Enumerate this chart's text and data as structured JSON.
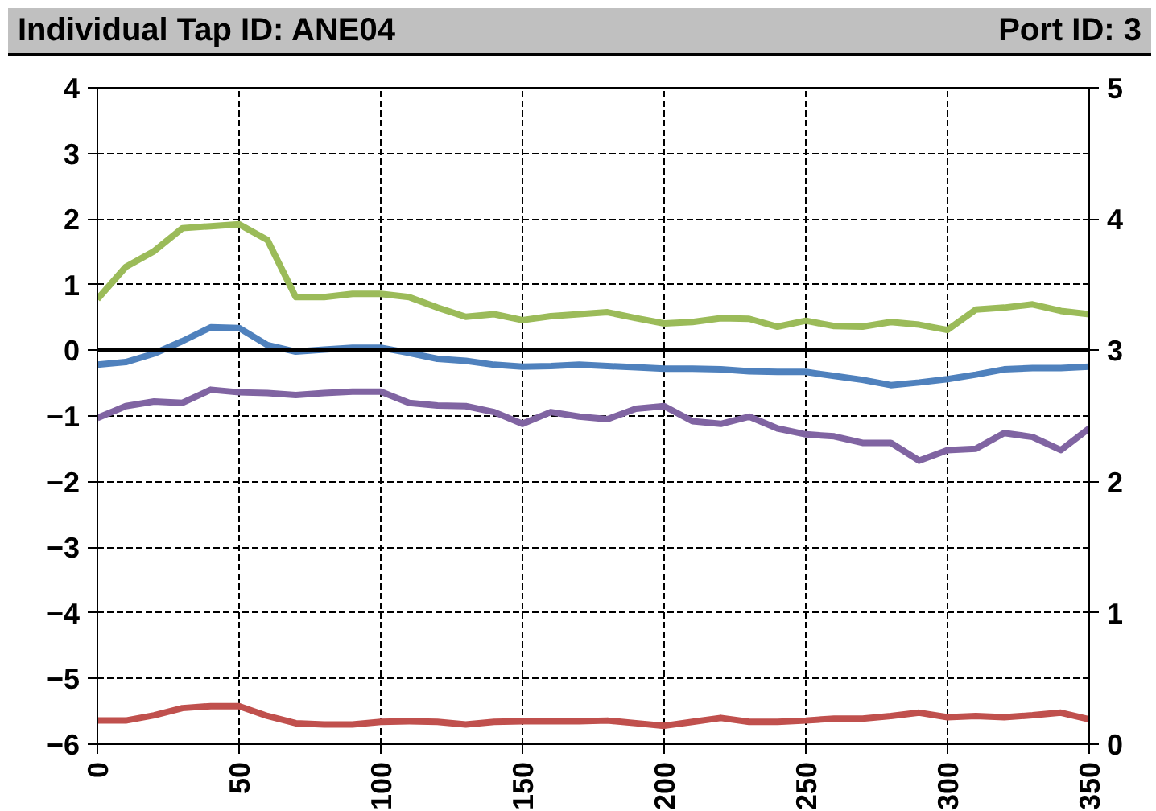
{
  "chart_data": {
    "type": "line",
    "title": "Individual Tap ID: ANE04",
    "annotations": [
      "Port ID: 3"
    ],
    "x": [
      0,
      10,
      20,
      30,
      40,
      50,
      60,
      70,
      80,
      90,
      100,
      110,
      120,
      130,
      140,
      150,
      160,
      170,
      180,
      190,
      200,
      210,
      220,
      230,
      240,
      250,
      260,
      270,
      280,
      290,
      300,
      310,
      320,
      330,
      340,
      350
    ],
    "series": [
      {
        "color": "#9bbb59",
        "values": [
          0.78,
          1.27,
          1.51,
          1.86,
          1.89,
          1.92,
          1.68,
          0.81,
          0.81,
          0.86,
          0.86,
          0.81,
          0.65,
          0.51,
          0.55,
          0.46,
          0.52,
          0.55,
          0.58,
          0.49,
          0.41,
          0.43,
          0.49,
          0.48,
          0.36,
          0.45,
          0.37,
          0.36,
          0.43,
          0.39,
          0.31,
          0.62,
          0.65,
          0.7,
          0.6,
          0.55
        ]
      },
      {
        "color": "#4f81bd",
        "values": [
          -0.22,
          -0.18,
          -0.05,
          0.14,
          0.35,
          0.34,
          0.08,
          -0.02,
          0.01,
          0.04,
          0.04,
          -0.04,
          -0.13,
          -0.16,
          -0.22,
          -0.25,
          -0.24,
          -0.22,
          -0.24,
          -0.26,
          -0.28,
          -0.28,
          -0.29,
          -0.32,
          -0.33,
          -0.33,
          -0.39,
          -0.45,
          -0.53,
          -0.49,
          -0.44,
          -0.37,
          -0.29,
          -0.27,
          -0.27,
          -0.25
        ]
      },
      {
        "color": "#8064a2",
        "values": [
          -1.03,
          -0.85,
          -0.78,
          -0.8,
          -0.6,
          -0.64,
          -0.65,
          -0.68,
          -0.65,
          -0.63,
          -0.63,
          -0.8,
          -0.84,
          -0.85,
          -0.94,
          -1.12,
          -0.94,
          -1.01,
          -1.05,
          -0.89,
          -0.85,
          -1.08,
          -1.12,
          -1.01,
          -1.19,
          -1.28,
          -1.31,
          -1.41,
          -1.41,
          -1.68,
          -1.52,
          -1.5,
          -1.26,
          -1.32,
          -1.52,
          -1.19
        ]
      },
      {
        "color": "#c0504d",
        "values": [
          -5.64,
          -5.64,
          -5.56,
          -5.45,
          -5.42,
          -5.42,
          -5.57,
          -5.68,
          -5.7,
          -5.7,
          -5.66,
          -5.65,
          -5.66,
          -5.7,
          -5.66,
          -5.65,
          -5.65,
          -5.65,
          -5.64,
          -5.68,
          -5.72,
          -5.66,
          -5.6,
          -5.66,
          -5.66,
          -5.64,
          -5.61,
          -5.61,
          -5.57,
          -5.52,
          -5.59,
          -5.57,
          -5.59,
          -5.56,
          -5.52,
          -5.62
        ]
      }
    ],
    "xlim": [
      0,
      350
    ],
    "xticks": [
      0,
      50,
      100,
      150,
      200,
      250,
      300,
      350
    ],
    "ylim": [
      -6,
      4
    ],
    "yticks": [
      -6,
      -5,
      -4,
      -3,
      -2,
      -1,
      0,
      1,
      2,
      3,
      4
    ],
    "y2lim": [
      0,
      5
    ],
    "y2ticks": [
      0,
      1,
      2,
      3,
      4,
      5
    ],
    "ref_lines": [
      {
        "axis": "y",
        "value": 0,
        "color": "#000000",
        "line_style": "solid"
      }
    ],
    "grid": true
  }
}
